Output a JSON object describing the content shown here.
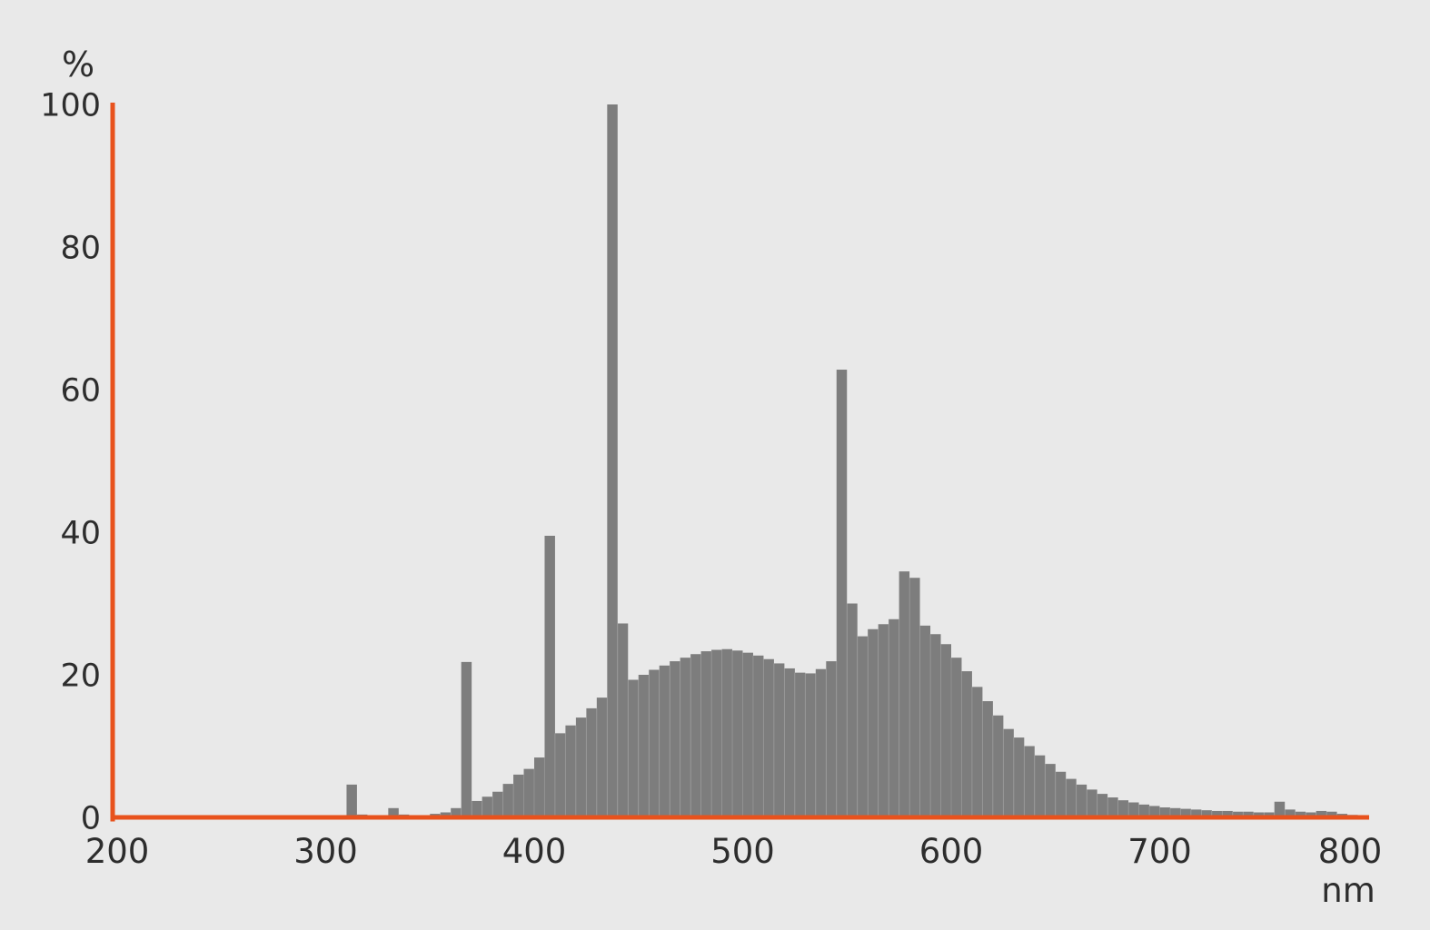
{
  "chart": {
    "y_axis": {
      "label": "%",
      "ticks": [
        0,
        20,
        40,
        60,
        80,
        100
      ]
    },
    "x_axis": {
      "label": "nm",
      "ticks": [
        200,
        300,
        400,
        500,
        600,
        700,
        800
      ]
    },
    "colors": {
      "background": "#e9e9e9",
      "bar": "#7d7d7d",
      "bar_seam": "rgba(255,255,255,0.15)",
      "axis": "#e8521d",
      "text": "#2d2d2d"
    }
  },
  "chart_data": {
    "type": "bar",
    "title": "",
    "xlabel": "nm",
    "ylabel": "%",
    "xlim": [
      200,
      810
    ],
    "ylim": [
      0,
      100
    ],
    "x_ticks": [
      200,
      300,
      400,
      500,
      600,
      700,
      800
    ],
    "y_ticks": [
      0,
      20,
      40,
      60,
      80,
      100
    ],
    "bin_width_nm": 5,
    "bins_nm_percent": [
      [
        300,
        0
      ],
      [
        305,
        0
      ],
      [
        310,
        4.6
      ],
      [
        315,
        0.4
      ],
      [
        320,
        0.15
      ],
      [
        325,
        0.2
      ],
      [
        330,
        1.3
      ],
      [
        335,
        0.4
      ],
      [
        340,
        0.25
      ],
      [
        345,
        0.3
      ],
      [
        350,
        0.5
      ],
      [
        355,
        0.7
      ],
      [
        360,
        1.3
      ],
      [
        365,
        21.8
      ],
      [
        370,
        2.3
      ],
      [
        375,
        2.9
      ],
      [
        380,
        3.6
      ],
      [
        385,
        4.7
      ],
      [
        390,
        6.0
      ],
      [
        395,
        6.8
      ],
      [
        400,
        8.4
      ],
      [
        405,
        39.5
      ],
      [
        410,
        11.8
      ],
      [
        415,
        12.9
      ],
      [
        420,
        14.0
      ],
      [
        425,
        15.3
      ],
      [
        430,
        16.8
      ],
      [
        435,
        100
      ],
      [
        440,
        27.2
      ],
      [
        445,
        19.3
      ],
      [
        450,
        20.0
      ],
      [
        455,
        20.7
      ],
      [
        460,
        21.3
      ],
      [
        465,
        21.9
      ],
      [
        470,
        22.4
      ],
      [
        475,
        22.9
      ],
      [
        480,
        23.3
      ],
      [
        485,
        23.5
      ],
      [
        490,
        23.6
      ],
      [
        495,
        23.4
      ],
      [
        500,
        23.1
      ],
      [
        505,
        22.7
      ],
      [
        510,
        22.2
      ],
      [
        515,
        21.6
      ],
      [
        520,
        20.9
      ],
      [
        525,
        20.3
      ],
      [
        530,
        20.2
      ],
      [
        535,
        20.8
      ],
      [
        540,
        21.9
      ],
      [
        545,
        62.8
      ],
      [
        550,
        30.0
      ],
      [
        555,
        25.4
      ],
      [
        560,
        26.4
      ],
      [
        565,
        27.1
      ],
      [
        570,
        27.8
      ],
      [
        575,
        34.5
      ],
      [
        580,
        33.6
      ],
      [
        585,
        26.9
      ],
      [
        590,
        25.7
      ],
      [
        595,
        24.3
      ],
      [
        600,
        22.4
      ],
      [
        605,
        20.5
      ],
      [
        610,
        18.3
      ],
      [
        615,
        16.3
      ],
      [
        620,
        14.3
      ],
      [
        625,
        12.4
      ],
      [
        630,
        11.2
      ],
      [
        635,
        10.0
      ],
      [
        640,
        8.7
      ],
      [
        645,
        7.5
      ],
      [
        650,
        6.4
      ],
      [
        655,
        5.4
      ],
      [
        660,
        4.6
      ],
      [
        665,
        3.9
      ],
      [
        670,
        3.3
      ],
      [
        675,
        2.8
      ],
      [
        680,
        2.4
      ],
      [
        685,
        2.1
      ],
      [
        690,
        1.8
      ],
      [
        695,
        1.6
      ],
      [
        700,
        1.4
      ],
      [
        705,
        1.3
      ],
      [
        710,
        1.2
      ],
      [
        715,
        1.1
      ],
      [
        720,
        1.0
      ],
      [
        725,
        0.9
      ],
      [
        730,
        0.9
      ],
      [
        735,
        0.8
      ],
      [
        740,
        0.8
      ],
      [
        745,
        0.7
      ],
      [
        750,
        0.7
      ],
      [
        755,
        2.2
      ],
      [
        760,
        1.1
      ],
      [
        765,
        0.8
      ],
      [
        770,
        0.7
      ],
      [
        775,
        0.9
      ],
      [
        780,
        0.8
      ],
      [
        785,
        0.5
      ],
      [
        790,
        0.35
      ],
      [
        795,
        0.25
      ]
    ]
  }
}
